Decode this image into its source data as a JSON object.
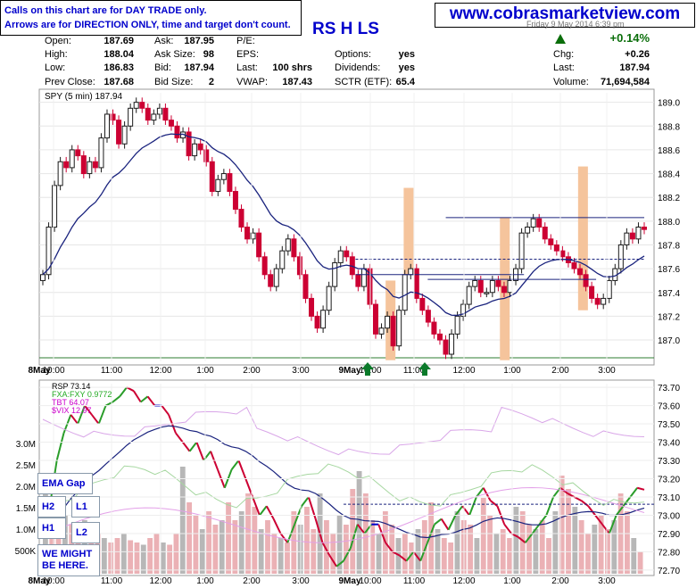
{
  "notes": {
    "line1": "Calls on this chart are for DAY TRADE only.",
    "line2": "Arrows are for DIRECTION ONLY, time and target don't count."
  },
  "website": "www.cobrasmarketview.com",
  "ticker_suffix": "RS H LS",
  "date_text": "Friday 9 May 2014 6:39 pm",
  "quote": {
    "open": {
      "label": "Open:",
      "value": "187.69"
    },
    "high": {
      "label": "High:",
      "value": "188.04"
    },
    "low": {
      "label": "Low:",
      "value": "186.83"
    },
    "prev_close": {
      "label": "Prev Close:",
      "value": "187.68"
    },
    "ask": {
      "label": "Ask:",
      "value": "187.95"
    },
    "ask_size": {
      "label": "Ask Size:",
      "value": "98"
    },
    "bid": {
      "label": "Bid:",
      "value": "187.94"
    },
    "bid_size": {
      "label": "Bid Size:",
      "value": "2"
    },
    "pe": {
      "label": "P/E:",
      "value": ""
    },
    "eps": {
      "label": "EPS:",
      "value": ""
    },
    "last_size": {
      "label": "Last:",
      "value": "100 shrs"
    },
    "vwap": {
      "label": "VWAP:",
      "value": "187.43"
    },
    "options": {
      "label": "Options:",
      "value": "yes"
    },
    "dividends": {
      "label": "Dividends:",
      "value": "yes"
    },
    "sctr": {
      "label": "SCTR (ETF):",
      "value": "65.4"
    },
    "pct_change": "+0.14%",
    "chg": {
      "label": "Chg:",
      "value": "+0.26"
    },
    "last": {
      "label": "Last:",
      "value": "187.94"
    },
    "volume": {
      "label": "Volume:",
      "value": "71,694,584"
    }
  },
  "buttons": {
    "ema_gap": "EMA Gap",
    "h2": "H2",
    "l1": "L1",
    "h1": "H1",
    "l2": "L2",
    "we_might": "WE MIGHT BE HERE."
  },
  "colors": {
    "up": "#1a1a1a",
    "down": "#cc0033",
    "ema": "#1a237e",
    "highlight": "#f5c49c",
    "arrow": "#0b7a2a"
  },
  "chart_data": [
    {
      "type": "line",
      "panel": "price",
      "title": "SPY (5 min) 187.94",
      "yticks": [
        "189.0",
        "188.8",
        "188.6",
        "188.4",
        "188.2",
        "188.0",
        "187.8",
        "187.6",
        "187.4",
        "187.2",
        "187.0"
      ],
      "ylim": [
        186.82,
        189.08
      ],
      "xticks": [
        "8May",
        "10:00",
        "11:00",
        "12:00",
        "1:00",
        "2:00",
        "3:00",
        "9May",
        "10:00",
        "11:00",
        "12:00",
        "1:00",
        "2:00",
        "3:00"
      ],
      "price_bars": [
        187.55,
        187.95,
        188.3,
        188.5,
        188.45,
        188.6,
        188.55,
        188.4,
        188.5,
        188.45,
        188.7,
        188.9,
        188.85,
        188.65,
        188.8,
        188.95,
        189.0,
        188.95,
        188.85,
        188.9,
        188.95,
        188.85,
        188.8,
        188.7,
        188.75,
        188.55,
        188.65,
        188.6,
        188.5,
        188.25,
        188.35,
        188.4,
        188.25,
        188.1,
        187.95,
        187.85,
        187.9,
        187.7,
        187.55,
        187.45,
        187.6,
        187.75,
        187.85,
        187.7,
        187.55,
        187.35,
        187.2,
        187.1,
        187.25,
        187.45,
        187.65,
        187.75,
        187.7,
        187.55,
        187.45,
        187.6,
        187.3,
        187.05,
        187.1,
        187.2,
        186.95,
        187.25,
        187.55,
        187.6,
        187.35,
        187.25,
        187.15,
        187.05,
        187.0,
        186.88,
        187.05,
        187.2,
        187.3,
        187.45,
        187.5,
        187.4,
        187.4,
        187.5,
        187.45,
        187.4,
        187.5,
        187.6,
        187.9,
        187.95,
        188.02,
        187.95,
        187.85,
        187.8,
        187.75,
        187.7,
        187.65,
        187.6,
        187.55,
        187.45,
        187.35,
        187.3,
        187.35,
        187.5,
        187.6,
        187.8,
        187.9,
        187.85,
        187.95,
        187.93
      ],
      "resistance_levels": [
        188.03,
        187.68,
        187.55,
        187.51
      ],
      "highlights": [
        {
          "from": 187.55,
          "to": 188.28
        },
        {
          "from": 186.83,
          "to": 187.5
        },
        {
          "from": 186.83,
          "to": 188.03
        },
        {
          "from": 187.25,
          "to": 188.46
        }
      ],
      "up_arrows": [
        "9May open",
        "11:00"
      ]
    },
    {
      "type": "line",
      "panel": "breadth",
      "series": [
        {
          "name": "RSP 73.14"
        },
        {
          "name": "FXA:FXY 0.9772"
        },
        {
          "name": "TBT 64.07"
        },
        {
          "name": "$VIX 12.97"
        }
      ],
      "right_ticks": [
        "73.70",
        "73.60",
        "73.50",
        "73.40",
        "73.30",
        "73.20",
        "73.10",
        "73.00",
        "72.90",
        "72.80",
        "72.70"
      ],
      "left_ticks": [
        "3.0M",
        "2.5M",
        "2.0M",
        "1.5M",
        "1.0M",
        "500K"
      ],
      "ylim": [
        72.68,
        73.72
      ],
      "rsp_values": [
        72.95,
        73.05,
        73.3,
        73.45,
        73.55,
        73.5,
        73.6,
        73.55,
        73.5,
        73.6,
        73.62,
        73.65,
        73.7,
        73.68,
        73.62,
        73.65,
        73.6,
        73.6,
        73.55,
        73.45,
        73.4,
        73.35,
        73.4,
        73.3,
        73.35,
        73.25,
        73.15,
        73.25,
        73.3,
        73.2,
        73.1,
        73.0,
        73.05,
        72.98,
        72.9,
        72.85,
        72.95,
        73.05,
        73.1,
        72.98,
        72.85,
        72.78,
        72.72,
        72.75,
        72.82,
        72.95,
        72.9,
        72.95,
        72.95,
        72.85,
        72.8,
        72.78,
        72.75,
        72.8,
        72.75,
        72.85,
        72.95,
        72.98,
        72.92,
        73.0,
        73.05,
        73.0,
        73.1,
        73.15,
        73.08,
        73.05,
        72.95,
        72.9,
        72.88,
        72.85,
        72.9,
        72.95,
        73.0,
        73.1,
        73.15,
        73.12,
        73.1,
        73.08,
        73.05,
        73.0,
        72.95,
        72.9,
        73.0,
        73.05,
        73.1,
        73.15,
        73.14
      ],
      "volume_values_k": [
        2200,
        1700,
        1500,
        1300,
        1100,
        1000,
        1200,
        1000,
        900,
        800,
        700,
        800,
        900,
        750,
        700,
        650,
        800,
        900,
        700,
        650,
        900,
        2400,
        1600,
        1300,
        1000,
        1400,
        1100,
        1200,
        1600,
        1200,
        1400,
        1800,
        1500,
        1000,
        1200,
        900,
        800,
        700,
        1400,
        1100,
        1500,
        1000,
        1800,
        1200,
        900,
        1300,
        1100,
        1900,
        2300,
        1800,
        1200,
        900,
        1400,
        1100,
        800,
        900,
        700,
        1000,
        1200,
        1600,
        1000,
        800,
        700,
        1400,
        1200,
        1100,
        800,
        1700,
        1300,
        900,
        1000,
        800,
        1500,
        1400,
        1100,
        1000,
        1200,
        800,
        1400,
        2200,
        1900,
        1500,
        1200,
        900,
        1100,
        1300,
        1000,
        1200,
        1800,
        1400,
        800,
        500
      ]
    }
  ]
}
